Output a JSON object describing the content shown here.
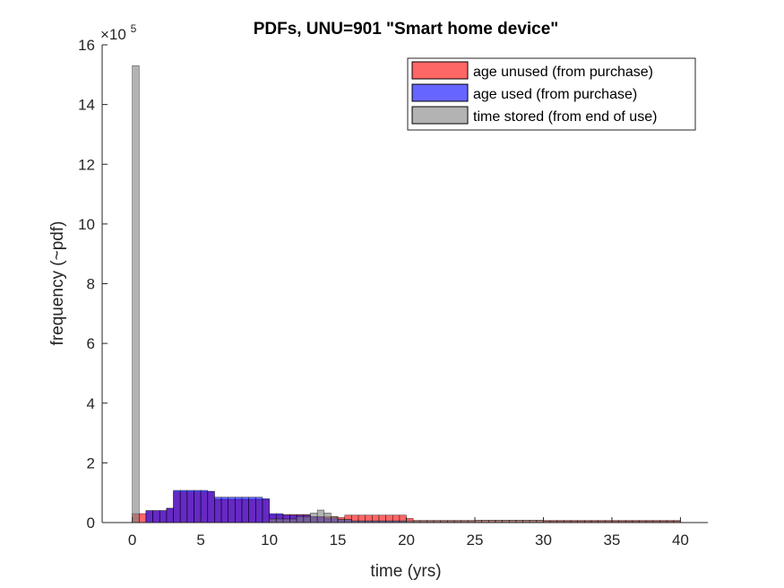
{
  "chart_data": {
    "type": "bar",
    "title": "PDFs, UNU=901 \"Smart home device\"",
    "xlabel": "time (yrs)",
    "ylabel": "frequency (~pdf)",
    "y_exponent_label": "×10",
    "y_exponent_power": "5",
    "y_scale": 100000,
    "xlim": [
      -2.2,
      42
    ],
    "ylim": [
      0,
      16
    ],
    "x_ticks": [
      0,
      5,
      10,
      15,
      20,
      25,
      30,
      35,
      40
    ],
    "y_ticks": [
      0,
      2,
      4,
      6,
      8,
      10,
      12,
      14,
      16
    ],
    "grid": false,
    "legend_position": "top-right",
    "bin_width": 0.5,
    "series": [
      {
        "name": "age unused (from purchase)",
        "color": "#ff0000",
        "bins": [
          {
            "x0": 0,
            "x1": 1,
            "y": 0.3
          },
          {
            "x0": 1,
            "x1": 2.5,
            "y": 0.4
          },
          {
            "x0": 2.5,
            "x1": 3,
            "y": 0.48
          },
          {
            "x0": 3,
            "x1": 6,
            "y": 1.03
          },
          {
            "x0": 6,
            "x1": 10,
            "y": 0.78
          },
          {
            "x0": 10,
            "x1": 13,
            "y": 0.27
          },
          {
            "x0": 13,
            "x1": 15,
            "y": 0.2
          },
          {
            "x0": 15,
            "x1": 15.5,
            "y": 0.17
          },
          {
            "x0": 15.5,
            "x1": 20,
            "y": 0.25
          },
          {
            "x0": 20,
            "x1": 20.5,
            "y": 0.14
          },
          {
            "x0": 20.5,
            "x1": 40,
            "y": 0.07
          }
        ]
      },
      {
        "name": "age used (from purchase)",
        "color": "#0000ff",
        "bins": [
          {
            "x0": 1,
            "x1": 2.5,
            "y": 0.4
          },
          {
            "x0": 2.5,
            "x1": 3,
            "y": 0.48
          },
          {
            "x0": 3,
            "x1": 5.5,
            "y": 1.08
          },
          {
            "x0": 5.5,
            "x1": 6,
            "y": 1.05
          },
          {
            "x0": 6,
            "x1": 9.5,
            "y": 0.85
          },
          {
            "x0": 9.5,
            "x1": 10,
            "y": 0.8
          },
          {
            "x0": 10,
            "x1": 11,
            "y": 0.3
          },
          {
            "x0": 11,
            "x1": 13,
            "y": 0.25
          },
          {
            "x0": 13,
            "x1": 14,
            "y": 0.2
          },
          {
            "x0": 14,
            "x1": 15,
            "y": 0.15
          },
          {
            "x0": 15,
            "x1": 16,
            "y": 0.1
          },
          {
            "x0": 16,
            "x1": 20,
            "y": 0.05
          }
        ]
      },
      {
        "name": "time stored (from end of use)",
        "color": "#808080",
        "bins": [
          {
            "x0": 0,
            "x1": 0.5,
            "y": 15.3
          },
          {
            "x0": 10,
            "x1": 12,
            "y": 0.12
          },
          {
            "x0": 12,
            "x1": 13,
            "y": 0.2
          },
          {
            "x0": 13,
            "x1": 13.5,
            "y": 0.32
          },
          {
            "x0": 13.5,
            "x1": 14,
            "y": 0.42
          },
          {
            "x0": 14,
            "x1": 14.5,
            "y": 0.32
          },
          {
            "x0": 14.5,
            "x1": 15,
            "y": 0.2
          },
          {
            "x0": 15,
            "x1": 16,
            "y": 0.1
          },
          {
            "x0": 16,
            "x1": 25,
            "y": 0.06
          },
          {
            "x0": 25,
            "x1": 30,
            "y": 0.08
          },
          {
            "x0": 30,
            "x1": 40,
            "y": 0.05
          }
        ]
      }
    ]
  }
}
